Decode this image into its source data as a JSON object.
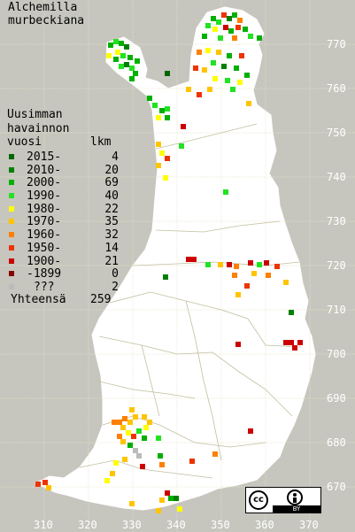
{
  "title": {
    "line1": "Alchemilla",
    "line2": "murbeckiana"
  },
  "legend": {
    "heading_lines": [
      "Uusimman",
      "havainnon"
    ],
    "col_vuosi": "vuosi",
    "col_lkm": "lkm",
    "rows": [
      {
        "range": "2015-",
        "count": "4",
        "color": "#006600"
      },
      {
        "range": "2010-",
        "count": "20",
        "color": "#008000"
      },
      {
        "range": "2000-",
        "count": "69",
        "color": "#00b000"
      },
      {
        "range": "1990-",
        "count": "40",
        "color": "#22e222"
      },
      {
        "range": "1980-",
        "count": "22",
        "color": "#ffff00"
      },
      {
        "range": "1970-",
        "count": "35",
        "color": "#ffc400"
      },
      {
        "range": "1960-",
        "count": "32",
        "color": "#ff8000"
      },
      {
        "range": "1950-",
        "count": "14",
        "color": "#ee3300"
      },
      {
        "range": "1900-",
        "count": "21",
        "color": "#cc0000"
      },
      {
        "range": "-1899",
        "count": "0",
        "color": "#880000"
      },
      {
        "range": "???",
        "count": "2",
        "color": "#bbbbbb"
      }
    ],
    "total_label": "Yhteensä",
    "total_count": "259"
  },
  "grid": {
    "x_labels": [
      "310",
      "320",
      "330",
      "340",
      "350",
      "360",
      "370"
    ],
    "y_labels": [
      "770",
      "760",
      "750",
      "740",
      "730",
      "720",
      "710",
      "700",
      "690",
      "680",
      "670"
    ]
  },
  "license": {
    "cc_text": "cc",
    "by_text": "BY"
  },
  "colors": {
    "background": "#c6c6be",
    "land": "#ffffff",
    "grid_lines": "#e6e2c8",
    "borders": "#c2bf9f"
  }
}
